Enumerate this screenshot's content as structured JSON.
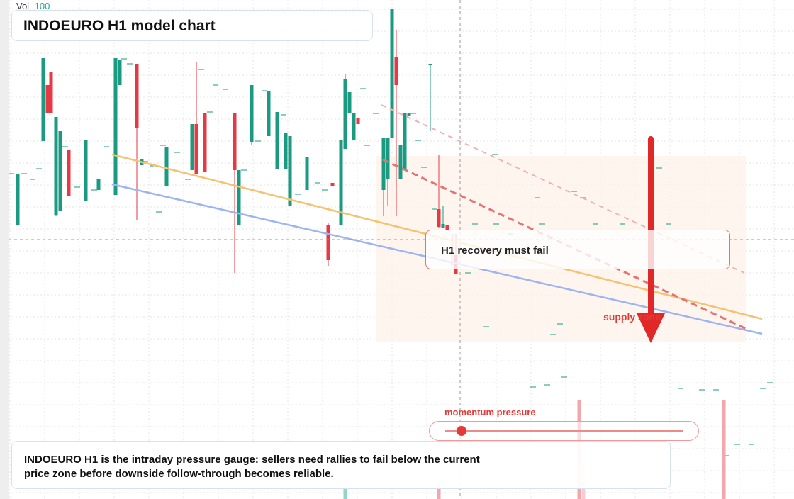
{
  "header": {
    "volume_label": "Vol",
    "volume_value": "100",
    "title": "INDOEURO H1 model chart"
  },
  "annotations": {
    "callout": "H1 recovery must fail",
    "zone_label": "supply zone",
    "gauge_label": "momentum pressure"
  },
  "description": "INDOEURO H1 is the intraday pressure gauge: sellers need rallies to fail below the current price zone before downside follow-through becomes reliable."
}
